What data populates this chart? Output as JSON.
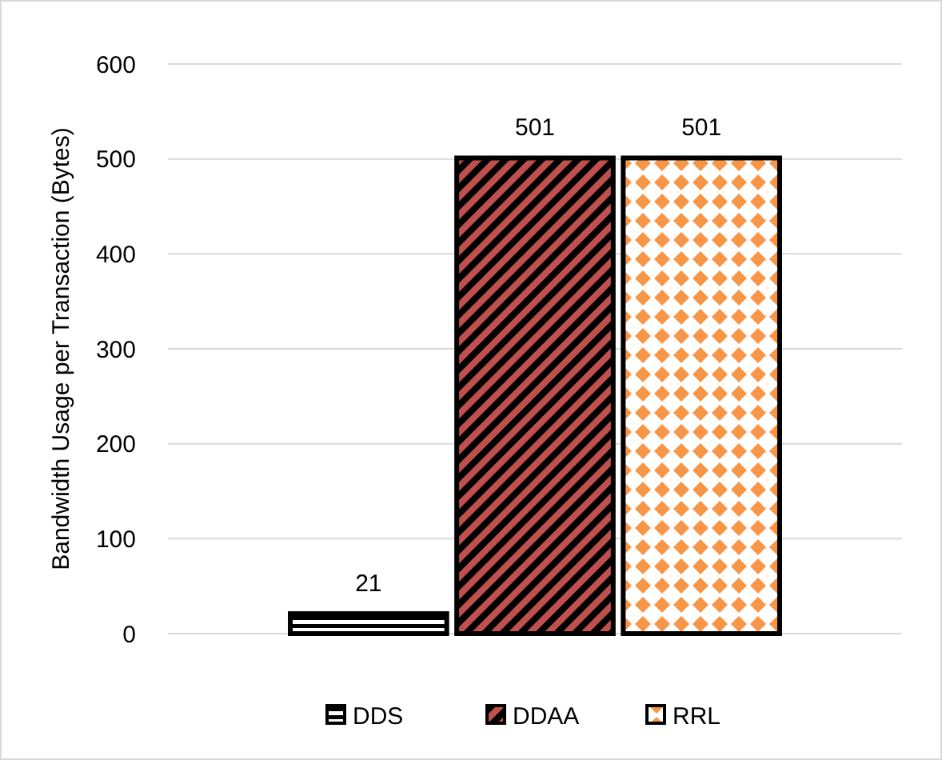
{
  "chart_data": {
    "type": "bar",
    "ylabel": "Bandwidth Usage per Transaction (Bytes)",
    "categories": [
      null
    ],
    "series": [
      {
        "name": "DDS",
        "color": "#000000",
        "values": [
          21
        ]
      },
      {
        "name": "DDAA",
        "color": "#c0504d",
        "values": [
          501
        ]
      },
      {
        "name": "RRL",
        "color": "#f79646",
        "values": [
          501
        ]
      }
    ],
    "ylim": [
      0,
      600
    ],
    "yticks": [
      0,
      100,
      200,
      300,
      400,
      500,
      600
    ],
    "grid": "y",
    "legend": "bottom",
    "data_labels": true
  }
}
